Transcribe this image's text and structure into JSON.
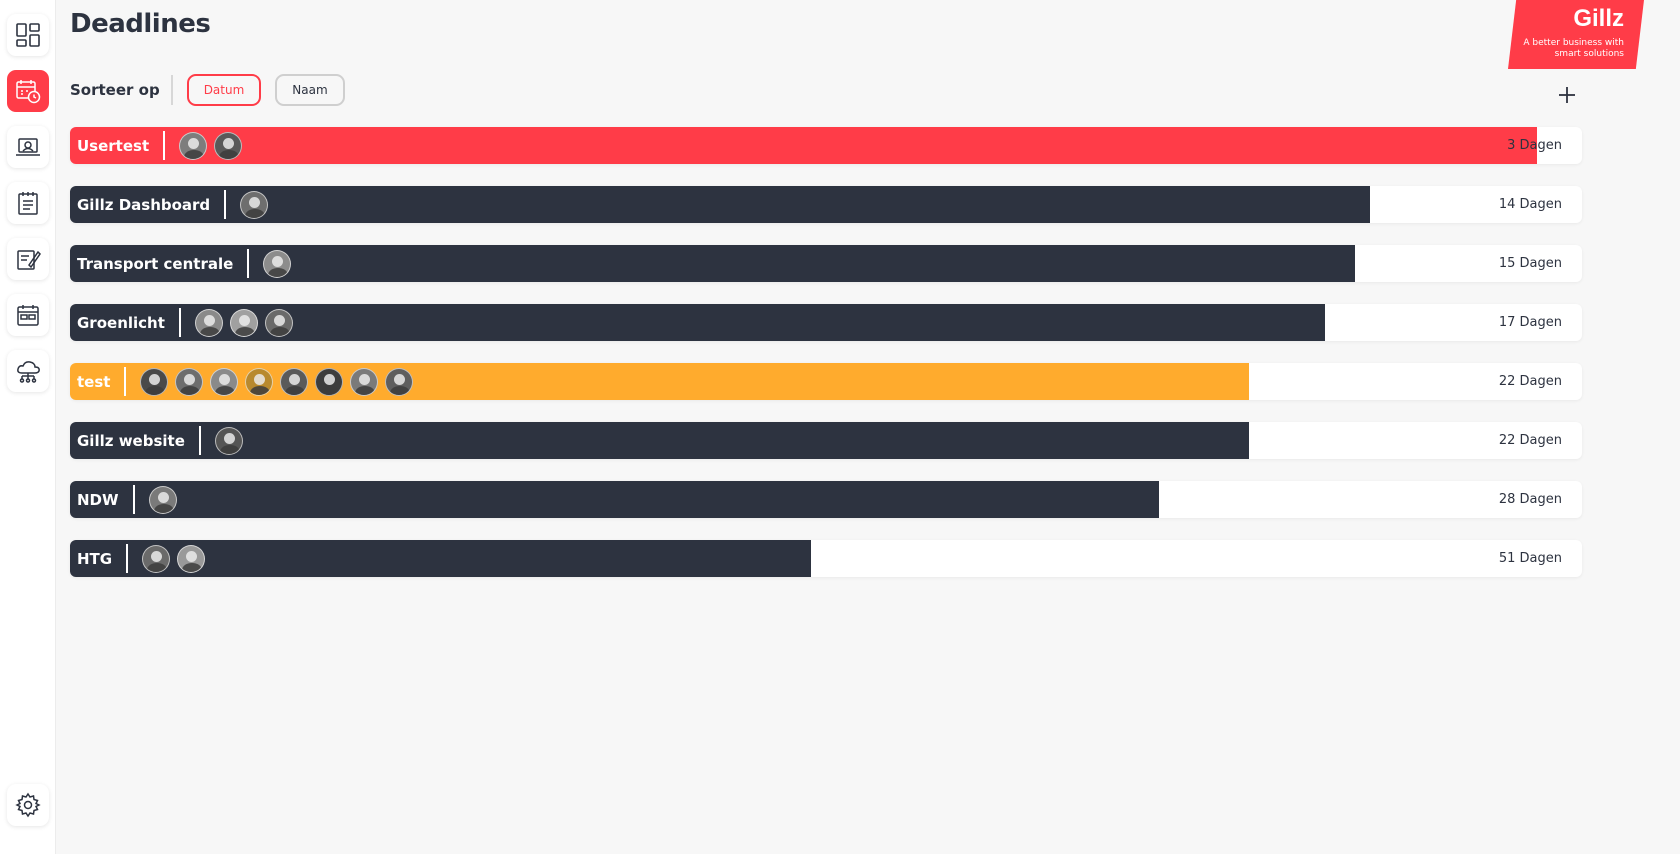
{
  "page": {
    "title": "Deadlines"
  },
  "sort": {
    "label": "Sorteer op",
    "options": [
      {
        "label": "Datum",
        "active": true
      },
      {
        "label": "Naam",
        "active": false
      }
    ]
  },
  "brand": {
    "name": "Gillz",
    "tagline_line1": "A better business with",
    "tagline_line2": "smart solutions",
    "color": "#ff3c48"
  },
  "colors": {
    "dark": "#2d3340",
    "red": "#ff3c48",
    "orange": "#ffab2d",
    "background": "#f7f7f7"
  },
  "sidebar": {
    "items": [
      {
        "icon": "dashboard-icon",
        "active": false
      },
      {
        "icon": "calendar-clock-icon",
        "active": true
      },
      {
        "icon": "laptop-support-icon",
        "active": false
      },
      {
        "icon": "notepad-icon",
        "active": false
      },
      {
        "icon": "edit-document-icon",
        "active": false
      },
      {
        "icon": "calendar-grid-icon",
        "active": false
      },
      {
        "icon": "cloud-network-icon",
        "active": false
      }
    ],
    "settings_icon": "gear-icon"
  },
  "deadlines": [
    {
      "name": "Usertest",
      "days": "3 Dagen",
      "progress": 0.97,
      "color": "#ff3c48",
      "avatars": [
        "#7d7d7d",
        "#595959"
      ]
    },
    {
      "name": "Gillz Dashboard",
      "days": "14 Dagen",
      "progress": 0.86,
      "color": "#2d3340",
      "avatars": [
        "#6e6e6e"
      ]
    },
    {
      "name": "Transport centrale",
      "days": "15 Dagen",
      "progress": 0.85,
      "color": "#2d3340",
      "avatars": [
        "#8c8c8c"
      ]
    },
    {
      "name": "Groenlicht",
      "days": "17 Dagen",
      "progress": 0.83,
      "color": "#2d3340",
      "avatars": [
        "#8a8a8a",
        "#a0a0a0",
        "#6a6a6a"
      ]
    },
    {
      "name": "test",
      "days": "22 Dagen",
      "progress": 0.78,
      "color": "#ffab2d",
      "avatars": [
        "#4a4a4a",
        "#6d6d6d",
        "#8a8a8a",
        "#b8892e",
        "#5a5a5a",
        "#3d3d3d",
        "#7a7a7a",
        "#5e5e5e"
      ]
    },
    {
      "name": "Gillz website",
      "days": "22 Dagen",
      "progress": 0.78,
      "color": "#2d3340",
      "avatars": [
        "#555555"
      ]
    },
    {
      "name": "NDW",
      "days": "28 Dagen",
      "progress": 0.72,
      "color": "#2d3340",
      "avatars": [
        "#7a7a7a"
      ]
    },
    {
      "name": "HTG",
      "days": "51 Dagen",
      "progress": 0.49,
      "color": "#2d3340",
      "avatars": [
        "#6a6a6a",
        "#999999"
      ]
    }
  ]
}
